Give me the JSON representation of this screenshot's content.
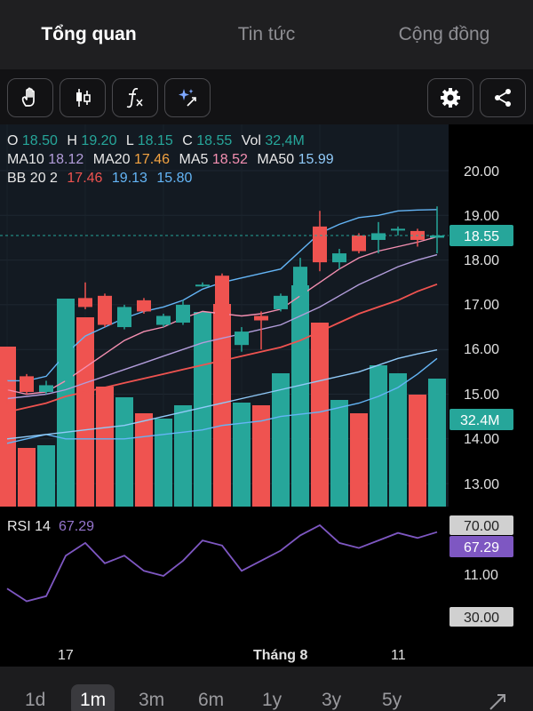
{
  "tabs": [
    "Tổng quan",
    "Tin tức",
    "Cộng đồng"
  ],
  "toolbar": {
    "left_icons": [
      "hand-icon",
      "candlestick-icon",
      "function-icon",
      "sparkle-icon"
    ],
    "right_icons": [
      "gear-icon",
      "share-icon"
    ]
  },
  "legend": {
    "ohlc": {
      "o_label": "O",
      "o": "18.50",
      "h_label": "H",
      "h": "19.20",
      "l_label": "L",
      "l": "18.15",
      "c_label": "C",
      "c": "18.55",
      "vol_label": "Vol",
      "vol": "32,4M"
    },
    "ma": {
      "ma10_label": "MA10",
      "ma10": "18.12",
      "ma20_label": "MA20",
      "ma20": "17.46",
      "ma5_label": "MA5",
      "ma5": "18.52",
      "ma50_label": "MA50",
      "ma50": "15.99"
    },
    "bb": {
      "label": "BB 20 2",
      "mid": "17.46",
      "upper": "19.13",
      "lower": "15.80"
    },
    "rsi": {
      "label": "RSI 14",
      "value": "67.29"
    }
  },
  "colors": {
    "up": "#26a69a",
    "down": "#ef5350",
    "ma10": "#b39ddb",
    "ma20": "#f4a442",
    "ma5": "#f48fb1",
    "ma50": "#90caf9",
    "bb_mid": "#ef5350",
    "bb_band": "#64b5f6",
    "rsi": "#7e57c2"
  },
  "price_axis": [
    "20.00",
    "19.00",
    "18.00",
    "17.00",
    "16.00",
    "15.00",
    "14.00",
    "13.00",
    "11.00"
  ],
  "price_badge": "18.55",
  "vol_badge": "32.4M",
  "rsi_axis": {
    "upper": "70.00",
    "current": "67.29",
    "lower": "30.00"
  },
  "time_axis": [
    "17",
    "Tháng 8",
    "11"
  ],
  "periods": [
    "1d",
    "1m",
    "3m",
    "6m",
    "1y",
    "3y",
    "5y"
  ],
  "active_period": "1m",
  "chart_data": {
    "type": "candlestick",
    "y_range": [
      12.5,
      20.5
    ],
    "candles": [
      {
        "o": 15.2,
        "h": 15.3,
        "l": 14.8,
        "c": 15.1
      },
      {
        "o": 15.4,
        "h": 15.45,
        "l": 15.0,
        "c": 15.05
      },
      {
        "o": 15.05,
        "h": 15.3,
        "l": 15.0,
        "c": 15.2
      },
      {
        "o": 15.3,
        "h": 16.45,
        "l": 15.25,
        "c": 16.4
      },
      {
        "o": 17.15,
        "h": 17.5,
        "l": 16.9,
        "c": 16.95
      },
      {
        "o": 17.2,
        "h": 17.25,
        "l": 16.5,
        "c": 16.55
      },
      {
        "o": 16.5,
        "h": 17.0,
        "l": 16.45,
        "c": 16.95
      },
      {
        "o": 17.1,
        "h": 17.15,
        "l": 16.8,
        "c": 16.85
      },
      {
        "o": 16.55,
        "h": 16.8,
        "l": 16.5,
        "c": 16.75
      },
      {
        "o": 16.6,
        "h": 17.1,
        "l": 16.55,
        "c": 17.0
      },
      {
        "o": 17.45,
        "h": 17.5,
        "l": 17.4,
        "c": 17.45
      },
      {
        "o": 17.65,
        "h": 17.7,
        "l": 16.3,
        "c": 16.3
      },
      {
        "o": 16.1,
        "h": 16.5,
        "l": 15.95,
        "c": 16.4
      },
      {
        "o": 16.75,
        "h": 16.85,
        "l": 16.0,
        "c": 16.65
      },
      {
        "o": 16.9,
        "h": 17.25,
        "l": 16.85,
        "c": 17.2
      },
      {
        "o": 17.2,
        "h": 18.05,
        "l": 17.15,
        "c": 17.85
      },
      {
        "o": 18.75,
        "h": 19.1,
        "l": 17.75,
        "c": 17.95
      },
      {
        "o": 17.95,
        "h": 18.25,
        "l": 17.8,
        "c": 18.15
      },
      {
        "o": 18.55,
        "h": 18.6,
        "l": 18.15,
        "c": 18.2
      },
      {
        "o": 18.45,
        "h": 18.85,
        "l": 18.15,
        "c": 18.6
      },
      {
        "o": 18.7,
        "h": 18.75,
        "l": 18.55,
        "c": 18.7
      },
      {
        "o": 18.65,
        "h": 18.7,
        "l": 18.3,
        "c": 18.45
      },
      {
        "o": 18.5,
        "h": 19.2,
        "l": 18.15,
        "c": 18.55
      }
    ],
    "volumes": [
      0.6,
      0.22,
      0.23,
      0.78,
      0.71,
      0.45,
      0.41,
      0.35,
      0.33,
      0.38,
      0.73,
      0.76,
      0.39,
      0.38,
      0.5,
      0.83,
      0.69,
      0.4,
      0.35,
      0.53,
      0.5,
      0.42,
      0.48
    ],
    "ma5": [
      15.1,
      15.0,
      15.05,
      15.3,
      15.6,
      15.9,
      16.2,
      16.4,
      16.5,
      16.7,
      16.85,
      16.8,
      16.75,
      16.8,
      16.9,
      17.2,
      17.5,
      17.8,
      18.05,
      18.2,
      18.3,
      18.4,
      18.52
    ],
    "ma10": [
      14.9,
      14.95,
      15.0,
      15.1,
      15.25,
      15.4,
      15.55,
      15.7,
      15.85,
      16.0,
      16.15,
      16.25,
      16.35,
      16.45,
      16.55,
      16.75,
      16.95,
      17.2,
      17.45,
      17.65,
      17.85,
      18.0,
      18.12
    ],
    "bb_mid": [
      14.6,
      14.7,
      14.8,
      14.95,
      15.05,
      15.15,
      15.25,
      15.35,
      15.45,
      15.55,
      15.65,
      15.75,
      15.85,
      15.95,
      16.05,
      16.2,
      16.4,
      16.6,
      16.8,
      16.95,
      17.1,
      17.3,
      17.46
    ],
    "bb_upper": [
      15.3,
      15.3,
      15.4,
      15.9,
      16.3,
      16.5,
      16.7,
      16.85,
      16.95,
      17.1,
      17.35,
      17.5,
      17.6,
      17.7,
      17.8,
      18.2,
      18.6,
      18.8,
      18.95,
      19.0,
      19.1,
      19.12,
      19.13
    ],
    "bb_lower": [
      13.9,
      14.0,
      14.1,
      14.0,
      14.0,
      14.0,
      14.0,
      14.05,
      14.1,
      14.15,
      14.2,
      14.3,
      14.35,
      14.4,
      14.5,
      14.55,
      14.6,
      14.7,
      14.8,
      14.95,
      15.15,
      15.45,
      15.8
    ],
    "ma50": [
      14.0,
      14.05,
      14.1,
      14.15,
      14.2,
      14.25,
      14.3,
      14.4,
      14.5,
      14.6,
      14.7,
      14.8,
      14.9,
      15.0,
      15.1,
      15.2,
      15.3,
      15.4,
      15.5,
      15.65,
      15.8,
      15.9,
      15.99
    ],
    "rsi": [
      45,
      40,
      42,
      58,
      63,
      55,
      58,
      52,
      50,
      56,
      64,
      62,
      52,
      56,
      60,
      66,
      70,
      63,
      61,
      64,
      67,
      65,
      67.29
    ]
  }
}
